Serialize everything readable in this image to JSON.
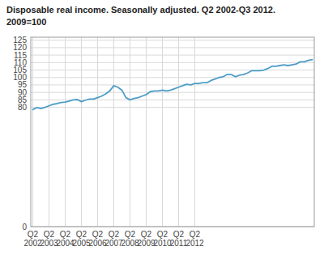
{
  "chart_data": {
    "type": "line",
    "title": "Disposable real income. Seasonally adjusted. Q2 2002-Q3 2012.",
    "subtitle": "2009=100",
    "color": "#4d9dc8",
    "grid": true,
    "ylim": [
      0,
      127
    ],
    "yticks": [
      0,
      80,
      85,
      90,
      95,
      100,
      105,
      110,
      115,
      120,
      125
    ],
    "categories": [
      "Q2\n2002",
      null,
      null,
      null,
      "Q2\n2003",
      null,
      null,
      null,
      "Q2\n2004",
      null,
      null,
      null,
      "Q2\n2005",
      null,
      null,
      null,
      "Q2\n2006",
      null,
      null,
      null,
      "Q2\n2007",
      null,
      null,
      null,
      "Q2\n2008",
      null,
      null,
      null,
      "Q2\n2009",
      null,
      null,
      null,
      "Q2\n2010",
      null,
      null,
      null,
      "Q2\n2011",
      null,
      null,
      null,
      "Q2\n2012",
      null,
      null,
      null,
      null,
      null,
      null,
      null,
      null,
      null,
      null,
      null,
      null,
      null,
      null,
      null,
      null,
      null,
      null,
      null,
      null,
      null,
      null,
      null,
      null,
      null,
      null,
      null,
      null,
      null
    ],
    "values": [
      78.5,
      79.8,
      79.2,
      80.0,
      81.0,
      82.0,
      82.5,
      83.2,
      83.5,
      84.2,
      85.0,
      85.2,
      83.8,
      84.8,
      85.5,
      85.5,
      86.5,
      87.5,
      89.0,
      91.0,
      94.5,
      93.5,
      91.5,
      86.5,
      85.0,
      86.0,
      86.5,
      87.5,
      88.5,
      90.5,
      91.0,
      91.0,
      91.5,
      91.0,
      91.5,
      92.5,
      93.5,
      94.5,
      95.5,
      95.0,
      96.0,
      96.0,
      96.5,
      96.5,
      98.0,
      99.0,
      100.0,
      100.5,
      102.0,
      102.0,
      100.5,
      101.5,
      102.0,
      103.0,
      104.5,
      104.5,
      104.5,
      105.0,
      106.0,
      107.5,
      107.5,
      108.0,
      108.5,
      108.0,
      108.5,
      109.0,
      110.5,
      110.5,
      111.5,
      112.0
    ]
  }
}
